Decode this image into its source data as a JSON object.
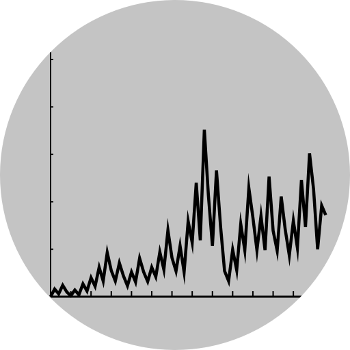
{
  "colors": {
    "disc": "#c4c4c4",
    "page": "#ffffff",
    "line": "#000000"
  },
  "chart_data": {
    "type": "line",
    "title": "",
    "xlabel": "",
    "ylabel": "",
    "grid": false,
    "legend": "none",
    "x_range": [
      0,
      74
    ],
    "y_range": [
      0,
      5
    ],
    "y_ticks": [
      0,
      1,
      2,
      3,
      4,
      5
    ],
    "x_ticks": [
      0,
      5,
      10,
      15,
      20,
      25,
      30,
      35,
      40,
      45,
      50,
      55,
      60,
      65,
      70
    ],
    "series": [
      {
        "values": [
          0.0,
          0.16,
          0.06,
          0.24,
          0.1,
          0.02,
          0.14,
          0.04,
          0.27,
          0.12,
          0.4,
          0.22,
          0.62,
          0.33,
          0.93,
          0.55,
          0.33,
          0.71,
          0.44,
          0.23,
          0.52,
          0.31,
          0.81,
          0.52,
          0.32,
          0.62,
          0.42,
          0.94,
          0.57,
          1.4,
          0.82,
          0.54,
          1.07,
          0.52,
          1.59,
          1.14,
          2.4,
          1.19,
          3.52,
          2.14,
          1.07,
          2.66,
          1.49,
          0.54,
          0.33,
          0.99,
          0.56,
          1.53,
          0.98,
          2.29,
          1.67,
          0.98,
          1.7,
          0.98,
          2.53,
          1.39,
          0.97,
          2.11,
          1.41,
          0.87,
          1.6,
          1.03,
          2.46,
          1.47,
          3.02,
          2.26,
          1.0,
          1.92,
          1.72
        ]
      }
    ]
  }
}
